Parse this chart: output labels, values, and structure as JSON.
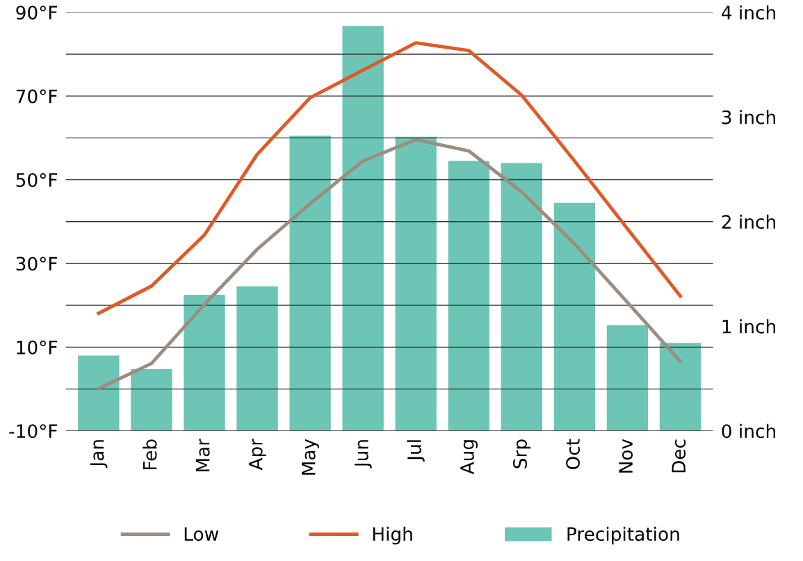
{
  "chart_data": {
    "type": "bar",
    "categories": [
      "Jan",
      "Feb",
      "Mar",
      "Apr",
      "May",
      "Jun",
      "Jul",
      "Aug",
      "Srp",
      "Oct",
      "Nov",
      "Dec"
    ],
    "series": [
      {
        "name": "Low",
        "type": "line",
        "color": "#9b8e80",
        "values": [
          0.1,
          6.1,
          20.2,
          33.4,
          44.3,
          54.5,
          59.6,
          56.9,
          47.1,
          34.7,
          20.7,
          6.6
        ]
      },
      {
        "name": "High",
        "type": "line",
        "color": "#e05a26",
        "values": [
          18.1,
          24.6,
          36.8,
          56.1,
          69.6,
          76.2,
          82.7,
          80.9,
          70.2,
          54.5,
          38.3,
          22.2
        ]
      },
      {
        "name": "Precipitation",
        "axis": "y2",
        "color": "#6cc5b5",
        "values": [
          0.72,
          0.59,
          1.3,
          1.38,
          2.82,
          3.87,
          2.81,
          2.58,
          2.56,
          2.18,
          1.01,
          0.84
        ]
      }
    ],
    "ylim": [
      -10,
      90
    ],
    "yticks": [
      {
        "value": -10,
        "label": "-10°F"
      },
      {
        "value": 0,
        "label": null
      },
      {
        "value": 10,
        "label": "10°F"
      },
      {
        "value": 20,
        "label": null
      },
      {
        "value": 30,
        "label": "30°F"
      },
      {
        "value": 40,
        "label": null
      },
      {
        "value": 50,
        "label": "50°F"
      },
      {
        "value": 60,
        "label": null
      },
      {
        "value": 70,
        "label": "70°F"
      },
      {
        "value": 80,
        "label": null
      },
      {
        "value": 90,
        "label": "90°F"
      }
    ],
    "y2lim": [
      0,
      4
    ],
    "y2ticks": [
      {
        "value": 0,
        "label": "0 inch"
      },
      {
        "value": 1,
        "label": "1 inch"
      },
      {
        "value": 2,
        "label": "2 inch"
      },
      {
        "value": 3,
        "label": "3 inch"
      },
      {
        "value": 4,
        "label": "4 inch"
      }
    ],
    "grid": "y",
    "legend": "bottom"
  }
}
